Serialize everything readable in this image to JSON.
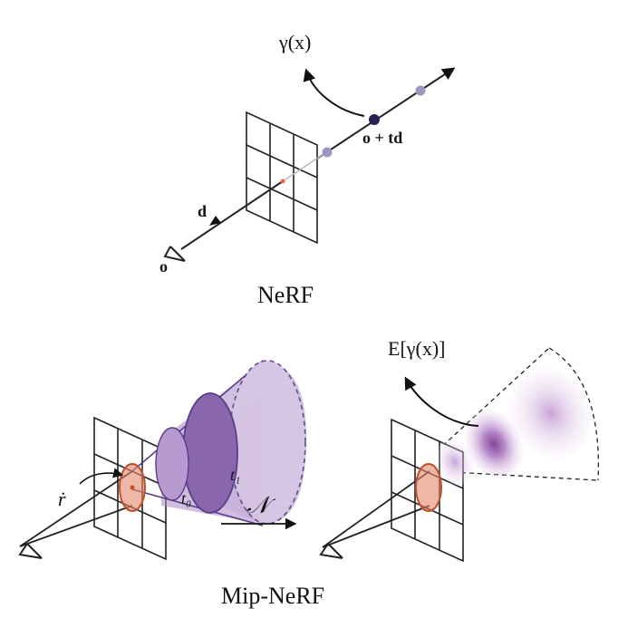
{
  "top": {
    "title": "NeRF",
    "label_gamma": "γ(x)",
    "label_point": "o + td",
    "label_dir": "d",
    "label_origin": "o"
  },
  "bottom": {
    "title": "Mip-NeRF",
    "label_r": "ṙ",
    "label_t0": "t₀",
    "label_t1": "t₁",
    "label_N": "𝒩",
    "label_expect": "E[γ(x)]"
  },
  "colors": {
    "sample_dark": "#2a1f55",
    "sample_light": "#9b98bf",
    "ellipse_fill": "#e2876a",
    "ellipse_stroke": "#c0502b",
    "cone": "#9b7bb8",
    "cone_stroke": "#5a3d8a"
  }
}
